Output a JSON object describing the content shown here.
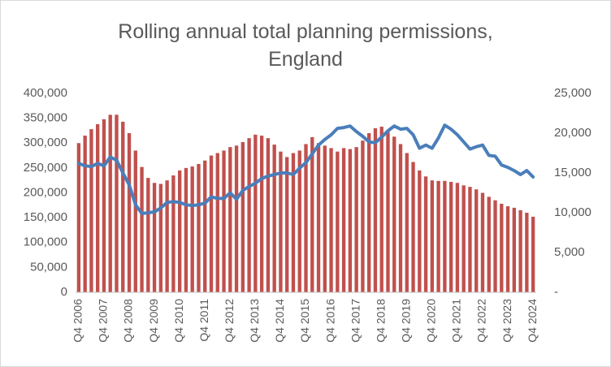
{
  "chart_data": {
    "type": "bar-line",
    "title": "Rolling annual total planning permissions, England",
    "categories": [
      "Q4 2006",
      null,
      null,
      null,
      "Q4 2007",
      null,
      null,
      null,
      "Q4 2008",
      null,
      null,
      null,
      "Q4 2009",
      null,
      null,
      null,
      "Q4 2010",
      null,
      null,
      null,
      "Q4 2011",
      null,
      null,
      null,
      "Q4 2012",
      null,
      null,
      null,
      "Q4 2013",
      null,
      null,
      null,
      "Q4 2014",
      null,
      null,
      null,
      "Q4 2015",
      null,
      null,
      null,
      "Q4 2016",
      null,
      null,
      null,
      "Q4 2017",
      null,
      null,
      null,
      "Q4 2018",
      null,
      null,
      null,
      "Q4 2019",
      null,
      null,
      null,
      "Q4 2020",
      null,
      null,
      null,
      "Q4 2021",
      null,
      null,
      null,
      "Q4 2022",
      null,
      null,
      null,
      "Q4 2023",
      null,
      null,
      null,
      "Q4 2024"
    ],
    "series": [
      {
        "type": "bar",
        "color": "#c0504d",
        "values": [
          300000,
          315000,
          328000,
          338000,
          348000,
          357000,
          357000,
          343000,
          320000,
          285000,
          252000,
          230000,
          220000,
          218000,
          225000,
          235000,
          245000,
          250000,
          253000,
          258000,
          265000,
          275000,
          280000,
          285000,
          292000,
          295000,
          302000,
          310000,
          317000,
          315000,
          310000,
          297000,
          283000,
          272000,
          280000,
          285000,
          298000,
          312000,
          300000,
          295000,
          290000,
          283000,
          290000,
          288000,
          292000,
          305000,
          320000,
          330000,
          333000,
          322000,
          313000,
          298000,
          280000,
          262000,
          245000,
          233000,
          225000,
          224000,
          224000,
          222000,
          220000,
          215000,
          212000,
          207000,
          200000,
          192000,
          185000,
          178000,
          173000,
          170000,
          165000,
          160000,
          152000
        ]
      },
      {
        "type": "line",
        "axis": "y2",
        "color": "#4a7ebb",
        "values": [
          16200,
          15900,
          15800,
          16200,
          15900,
          17000,
          16600,
          15000,
          13500,
          11000,
          9900,
          10000,
          10100,
          10600,
          11300,
          11400,
          11300,
          11000,
          10900,
          11000,
          11200,
          12000,
          11800,
          11800,
          12500,
          11700,
          12800,
          13300,
          13700,
          14300,
          14600,
          14800,
          15000,
          15000,
          14800,
          15600,
          16300,
          17400,
          18500,
          19200,
          19800,
          20600,
          20700,
          20900,
          20200,
          19600,
          18900,
          18800,
          19500,
          20300,
          20900,
          20500,
          20600,
          19800,
          18100,
          18500,
          18100,
          19400,
          21000,
          20500,
          19800,
          18900,
          18000,
          18300,
          18500,
          17200,
          17100,
          16000,
          15700,
          15300,
          14800,
          15300,
          14500
        ]
      }
    ],
    "ylim": [
      0,
      400000
    ],
    "yticks": [
      0,
      {
        "value": 50000,
        "label": "50,000"
      },
      {
        "value": 100000,
        "label": "100,000"
      },
      {
        "value": 150000,
        "label": "150,000"
      },
      {
        "value": 200000,
        "label": "200,000"
      },
      {
        "value": 250000,
        "label": "250,000"
      },
      {
        "value": 300000,
        "label": "300,000"
      },
      {
        "value": 350000,
        "label": "350,000"
      },
      {
        "value": 400000,
        "label": "400,000"
      }
    ],
    "y2lim": [
      0,
      25000
    ],
    "y2ticks": [
      {
        "value": 0,
        "label": "-"
      },
      {
        "value": 5000,
        "label": "5,000"
      },
      {
        "value": 10000,
        "label": "10,000"
      },
      {
        "value": 15000,
        "label": "15,000"
      },
      {
        "value": 20000,
        "label": "20,000"
      },
      {
        "value": 25000,
        "label": "25,000"
      }
    ],
    "grid": false
  }
}
